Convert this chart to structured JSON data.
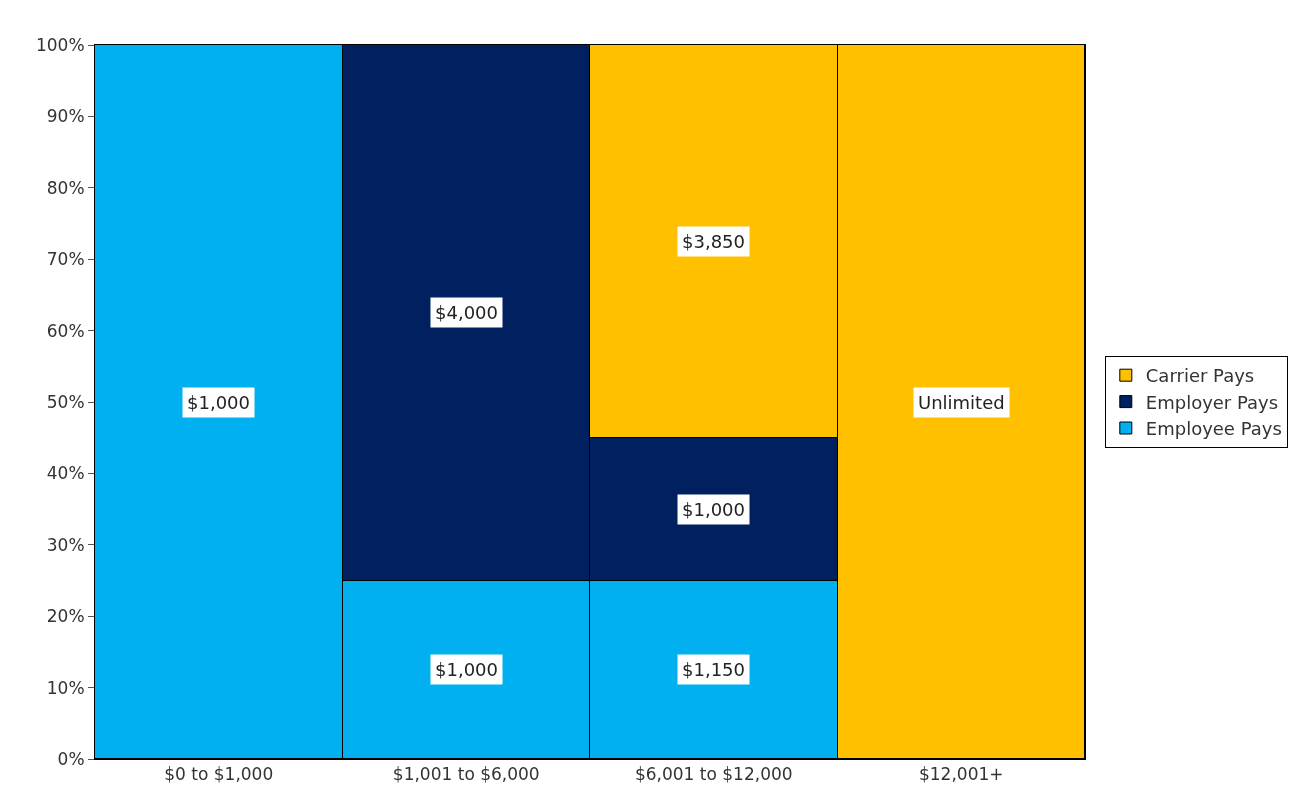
{
  "chart_data": {
    "type": "bar",
    "stacked": true,
    "categories": [
      "$0 to $1,000",
      "$1,001 to $6,000",
      "$6,001 to $12,000",
      "$12,001+"
    ],
    "series": [
      {
        "name": "Employee Pays",
        "color": "#00b0f0",
        "values": [
          100,
          25,
          25,
          null
        ]
      },
      {
        "name": "Employer Pays",
        "color": "#002060",
        "values": [
          null,
          75,
          20,
          null
        ]
      },
      {
        "name": "Carrier Pays",
        "color": "#ffc000",
        "values": [
          null,
          null,
          55,
          100
        ]
      }
    ],
    "annotations": [
      "$1,000",
      "$1,000",
      "$1,150",
      "$4,000",
      "$1,000",
      "$3,850",
      "Unlimited"
    ],
    "ylim": [
      0,
      100
    ],
    "yticks": [
      {
        "value": 0,
        "label": "0%"
      },
      {
        "value": 10,
        "label": "10%"
      },
      {
        "value": 20,
        "label": "20%"
      },
      {
        "value": 30,
        "label": "30%"
      },
      {
        "value": 40,
        "label": "40%"
      },
      {
        "value": 50,
        "label": "50%"
      },
      {
        "value": 60,
        "label": "60%"
      },
      {
        "value": 70,
        "label": "70%"
      },
      {
        "value": 80,
        "label": "80%"
      },
      {
        "value": 90,
        "label": "90%"
      },
      {
        "value": 100,
        "label": "100%"
      }
    ],
    "legend": "right"
  }
}
